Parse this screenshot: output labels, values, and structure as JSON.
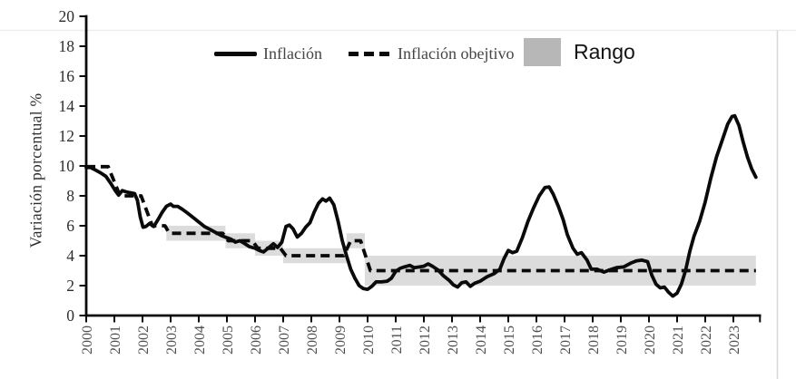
{
  "chart_data": {
    "type": "line",
    "title": "",
    "xlabel": "",
    "ylabel": "Variación porcentual %",
    "xlim": [
      2000,
      2024
    ],
    "ylim": [
      0,
      20
    ],
    "grid": false,
    "legend_position": "top",
    "y_ticks": [
      0,
      2,
      4,
      6,
      8,
      10,
      12,
      14,
      16,
      18,
      20
    ],
    "x_ticks": [
      2000,
      2001,
      2002,
      2003,
      2004,
      2005,
      2006,
      2007,
      2008,
      2009,
      2010,
      2011,
      2012,
      2013,
      2014,
      2015,
      2016,
      2017,
      2018,
      2019,
      2020,
      2021,
      2022,
      2023
    ],
    "series": [
      {
        "name": "Inflación",
        "style": "solid",
        "color": "#0a0a0a",
        "points": [
          [
            2000.0,
            9.9
          ],
          [
            2000.15,
            9.9
          ],
          [
            2000.3,
            9.75
          ],
          [
            2000.5,
            9.55
          ],
          [
            2000.7,
            9.3
          ],
          [
            2000.9,
            8.75
          ],
          [
            2001.05,
            8.3
          ],
          [
            2001.15,
            8.05
          ],
          [
            2001.28,
            8.35
          ],
          [
            2001.45,
            8.25
          ],
          [
            2001.6,
            8.2
          ],
          [
            2001.72,
            8.15
          ],
          [
            2001.82,
            7.7
          ],
          [
            2001.92,
            6.6
          ],
          [
            2002.02,
            5.9
          ],
          [
            2002.12,
            5.95
          ],
          [
            2002.25,
            6.15
          ],
          [
            2002.4,
            5.95
          ],
          [
            2002.55,
            6.4
          ],
          [
            2002.7,
            6.9
          ],
          [
            2002.85,
            7.3
          ],
          [
            2003.0,
            7.45
          ],
          [
            2003.1,
            7.3
          ],
          [
            2003.25,
            7.3
          ],
          [
            2003.42,
            7.1
          ],
          [
            2003.6,
            6.85
          ],
          [
            2003.8,
            6.55
          ],
          [
            2004.0,
            6.25
          ],
          [
            2004.2,
            5.95
          ],
          [
            2004.4,
            5.75
          ],
          [
            2004.6,
            5.55
          ],
          [
            2004.8,
            5.35
          ],
          [
            2005.0,
            5.2
          ],
          [
            2005.15,
            5.1
          ],
          [
            2005.3,
            4.9
          ],
          [
            2005.45,
            5.0
          ],
          [
            2005.6,
            4.85
          ],
          [
            2005.8,
            4.6
          ],
          [
            2006.0,
            4.5
          ],
          [
            2006.15,
            4.35
          ],
          [
            2006.3,
            4.25
          ],
          [
            2006.5,
            4.55
          ],
          [
            2006.65,
            4.8
          ],
          [
            2006.8,
            4.55
          ],
          [
            2006.95,
            4.9
          ],
          [
            2007.1,
            5.95
          ],
          [
            2007.22,
            6.05
          ],
          [
            2007.35,
            5.8
          ],
          [
            2007.5,
            5.25
          ],
          [
            2007.65,
            5.5
          ],
          [
            2007.8,
            5.9
          ],
          [
            2007.95,
            6.2
          ],
          [
            2008.1,
            6.9
          ],
          [
            2008.25,
            7.5
          ],
          [
            2008.4,
            7.8
          ],
          [
            2008.52,
            7.65
          ],
          [
            2008.65,
            7.85
          ],
          [
            2008.8,
            7.4
          ],
          [
            2008.95,
            6.3
          ],
          [
            2009.1,
            5.0
          ],
          [
            2009.25,
            4.0
          ],
          [
            2009.4,
            3.1
          ],
          [
            2009.55,
            2.5
          ],
          [
            2009.7,
            2.0
          ],
          [
            2009.85,
            1.8
          ],
          [
            2010.0,
            1.75
          ],
          [
            2010.15,
            1.95
          ],
          [
            2010.3,
            2.25
          ],
          [
            2010.5,
            2.25
          ],
          [
            2010.7,
            2.3
          ],
          [
            2010.85,
            2.5
          ],
          [
            2011.0,
            2.95
          ],
          [
            2011.15,
            3.15
          ],
          [
            2011.3,
            3.25
          ],
          [
            2011.5,
            3.35
          ],
          [
            2011.65,
            3.2
          ],
          [
            2011.85,
            3.25
          ],
          [
            2012.0,
            3.3
          ],
          [
            2012.15,
            3.45
          ],
          [
            2012.3,
            3.3
          ],
          [
            2012.5,
            3.05
          ],
          [
            2012.7,
            2.65
          ],
          [
            2012.9,
            2.35
          ],
          [
            2013.05,
            2.05
          ],
          [
            2013.2,
            1.9
          ],
          [
            2013.35,
            2.2
          ],
          [
            2013.5,
            2.25
          ],
          [
            2013.65,
            1.95
          ],
          [
            2013.8,
            2.15
          ],
          [
            2014.0,
            2.3
          ],
          [
            2014.25,
            2.6
          ],
          [
            2014.5,
            2.8
          ],
          [
            2014.7,
            3.1
          ],
          [
            2014.85,
            3.8
          ],
          [
            2015.0,
            4.35
          ],
          [
            2015.15,
            4.2
          ],
          [
            2015.3,
            4.3
          ],
          [
            2015.5,
            5.2
          ],
          [
            2015.7,
            6.3
          ],
          [
            2015.9,
            7.2
          ],
          [
            2016.1,
            8.0
          ],
          [
            2016.3,
            8.55
          ],
          [
            2016.45,
            8.6
          ],
          [
            2016.6,
            8.1
          ],
          [
            2016.78,
            7.3
          ],
          [
            2016.95,
            6.4
          ],
          [
            2017.1,
            5.4
          ],
          [
            2017.3,
            4.5
          ],
          [
            2017.45,
            4.1
          ],
          [
            2017.6,
            4.2
          ],
          [
            2017.8,
            3.7
          ],
          [
            2017.95,
            3.1
          ],
          [
            2018.15,
            3.1
          ],
          [
            2018.4,
            2.9
          ],
          [
            2018.6,
            3.05
          ],
          [
            2018.85,
            3.2
          ],
          [
            2019.1,
            3.25
          ],
          [
            2019.35,
            3.5
          ],
          [
            2019.55,
            3.65
          ],
          [
            2019.75,
            3.7
          ],
          [
            2019.95,
            3.6
          ],
          [
            2020.1,
            2.7
          ],
          [
            2020.25,
            2.1
          ],
          [
            2020.4,
            1.85
          ],
          [
            2020.55,
            1.9
          ],
          [
            2020.7,
            1.55
          ],
          [
            2020.85,
            1.3
          ],
          [
            2021.0,
            1.5
          ],
          [
            2021.15,
            2.1
          ],
          [
            2021.3,
            3.0
          ],
          [
            2021.45,
            4.3
          ],
          [
            2021.6,
            5.3
          ],
          [
            2021.8,
            6.3
          ],
          [
            2022.0,
            7.6
          ],
          [
            2022.2,
            9.2
          ],
          [
            2022.4,
            10.6
          ],
          [
            2022.6,
            11.7
          ],
          [
            2022.8,
            12.8
          ],
          [
            2022.95,
            13.3
          ],
          [
            2023.05,
            13.35
          ],
          [
            2023.2,
            12.7
          ],
          [
            2023.35,
            11.6
          ],
          [
            2023.5,
            10.6
          ],
          [
            2023.65,
            9.8
          ],
          [
            2023.8,
            9.25
          ]
        ]
      },
      {
        "name": "Inflación obejtivo",
        "style": "dashed",
        "color": "#0a0a0a",
        "points": [
          [
            2000.0,
            9.95
          ],
          [
            2000.78,
            9.95
          ],
          [
            2001.2,
            8.0
          ],
          [
            2001.95,
            8.0
          ],
          [
            2002.35,
            6.0
          ],
          [
            2002.8,
            6.0
          ],
          [
            2002.95,
            5.5
          ],
          [
            2004.85,
            5.5
          ],
          [
            2005.05,
            5.0
          ],
          [
            2005.9,
            5.0
          ],
          [
            2006.1,
            4.5
          ],
          [
            2006.9,
            4.5
          ],
          [
            2007.1,
            4.0
          ],
          [
            2009.15,
            4.0
          ],
          [
            2009.4,
            5.0
          ],
          [
            2009.75,
            5.0
          ],
          [
            2010.1,
            3.0
          ],
          [
            2023.8,
            3.0
          ]
        ]
      }
    ],
    "band": {
      "name": "Rango",
      "color": "#dcdcdc",
      "segments": [
        [
          2002.85,
          2004.95,
          5.0,
          6.0
        ],
        [
          2004.95,
          2006.0,
          4.5,
          5.5
        ],
        [
          2006.0,
          2007.0,
          4.0,
          5.0
        ],
        [
          2007.0,
          2009.25,
          3.5,
          4.5
        ],
        [
          2009.25,
          2009.9,
          4.5,
          5.5
        ],
        [
          2009.9,
          2023.8,
          2.0,
          4.0
        ]
      ]
    }
  },
  "colors": {
    "line": "#0a0a0a",
    "band_fill": "#dcdcdc",
    "legend_box": "#b7b7b7",
    "axis": "#0a0a0a",
    "tick_label": "#4f4f4f"
  }
}
